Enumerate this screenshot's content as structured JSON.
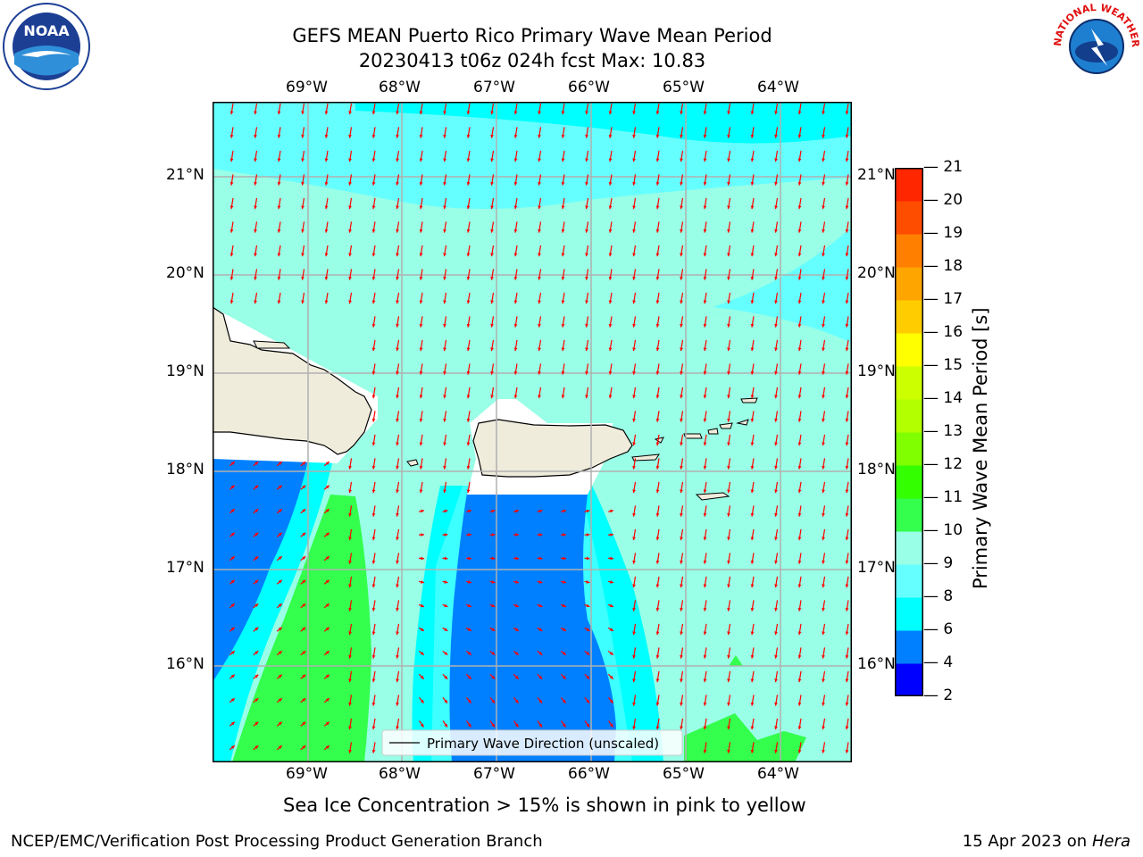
{
  "header": {
    "title_line1": "GEFS MEAN Puerto Rico Primary Wave Mean Period",
    "title_line2": "20230413 t06z 024h fcst   Max: 10.83"
  },
  "logos": {
    "noaa_text": "NOAA",
    "nws_text": "NATIONAL WEATHER SERVICE"
  },
  "map": {
    "lon_labels": [
      "69°W",
      "68°W",
      "67°W",
      "66°W",
      "65°W",
      "64°W"
    ],
    "lat_labels": [
      "21°N",
      "20°N",
      "19°N",
      "18°N",
      "17°N",
      "16°N"
    ],
    "legend_label": "Primary Wave Direction (unscaled)",
    "arrow_color": "#ff0000",
    "land_color": "#efecdc",
    "colors": {
      "c2_4": "#0000ff",
      "c4_6": "#0080ff",
      "c6_8": "#00ffff",
      "c8_9": "#66ffff",
      "c9_10": "#99ffe6",
      "c10_11": "#33ff4c"
    }
  },
  "colorbar": {
    "label": "Primary Wave Mean Period [s]",
    "ticks": [
      "2",
      "4",
      "6",
      "8",
      "9",
      "10",
      "11",
      "12",
      "13",
      "14",
      "15",
      "16",
      "17",
      "18",
      "19",
      "20",
      "21"
    ],
    "colors": [
      "#0000ff",
      "#0080ff",
      "#00ffff",
      "#66ffff",
      "#99ffe6",
      "#33ff4c",
      "#33ff00",
      "#80ff00",
      "#b3ff00",
      "#ccff00",
      "#ffff00",
      "#ffcc00",
      "#ffa500",
      "#ff8000",
      "#ff4d00",
      "#ff2600"
    ]
  },
  "caption": "Sea Ice Concentration > 15% is shown in pink to yellow",
  "footer": {
    "left": "NCEP/EMC/Verification Post Processing Product Generation Branch",
    "right_prefix": "15 Apr 2023 on ",
    "right_italic": "Hera"
  }
}
